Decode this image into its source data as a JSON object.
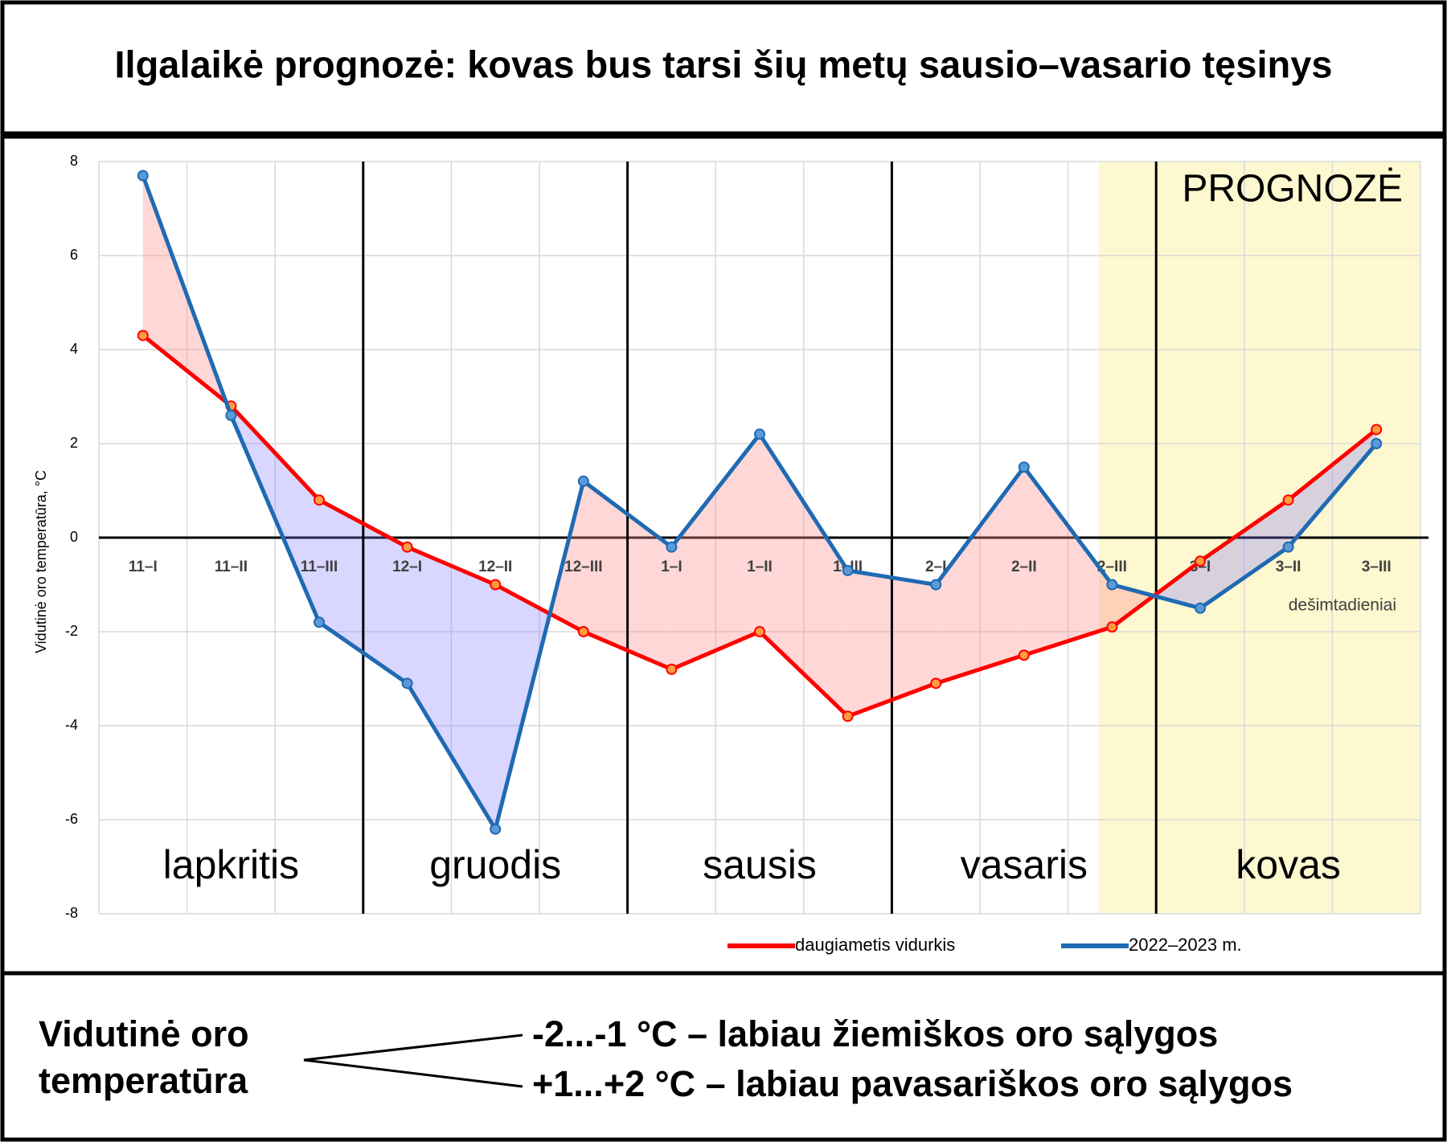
{
  "chart_data": {
    "type": "line",
    "title": "Ilgalaikė prognozė: kovas bus tarsi šių metų sausio–vasario tęsinys",
    "y_label": "Vidutinė oro temperatūra, °C",
    "x_label": "dešimtadieniai",
    "forecast_label": "PROGNOZĖ",
    "period_labels": [
      "lapkritis",
      "gruodis",
      "sausis",
      "vasaris",
      "kovas"
    ],
    "categories": [
      "11–I",
      "11–II",
      "11–III",
      "12–I",
      "12–II",
      "12–III",
      "1–I",
      "1–II",
      "1–III",
      "2–I",
      "2–II",
      "2–III",
      "3–I",
      "3–II",
      "3–III"
    ],
    "series": [
      {
        "name": "daugiametis vidurkis",
        "color": "#ff0000",
        "values": [
          4.3,
          2.8,
          0.8,
          -0.2,
          -1.0,
          -2.0,
          -2.8,
          -2.0,
          -3.8,
          -3.1,
          -2.5,
          -1.9,
          -0.5,
          0.8,
          2.3
        ]
      },
      {
        "name": "2022–2023 m.",
        "color": "#1f6ab3",
        "values": [
          7.7,
          2.6,
          -1.8,
          -3.1,
          -6.2,
          1.2,
          -0.2,
          2.2,
          -0.7,
          -1.0,
          1.5,
          -1.0,
          -1.5,
          -0.2,
          2.0
        ]
      }
    ],
    "ylim": [
      -8,
      8
    ],
    "yticks": [
      -8,
      -6,
      -4,
      -2,
      0,
      2,
      4,
      6,
      8
    ],
    "grid": true,
    "legend": "bottom"
  },
  "footer": {
    "label": "Vidutinė oro temperatūra",
    "items": [
      "-2...-1 °C – labiau žiemiškos oro sąlygos",
      "+1...+2 °C – labiau pavasariškos oro sąlygos"
    ]
  }
}
